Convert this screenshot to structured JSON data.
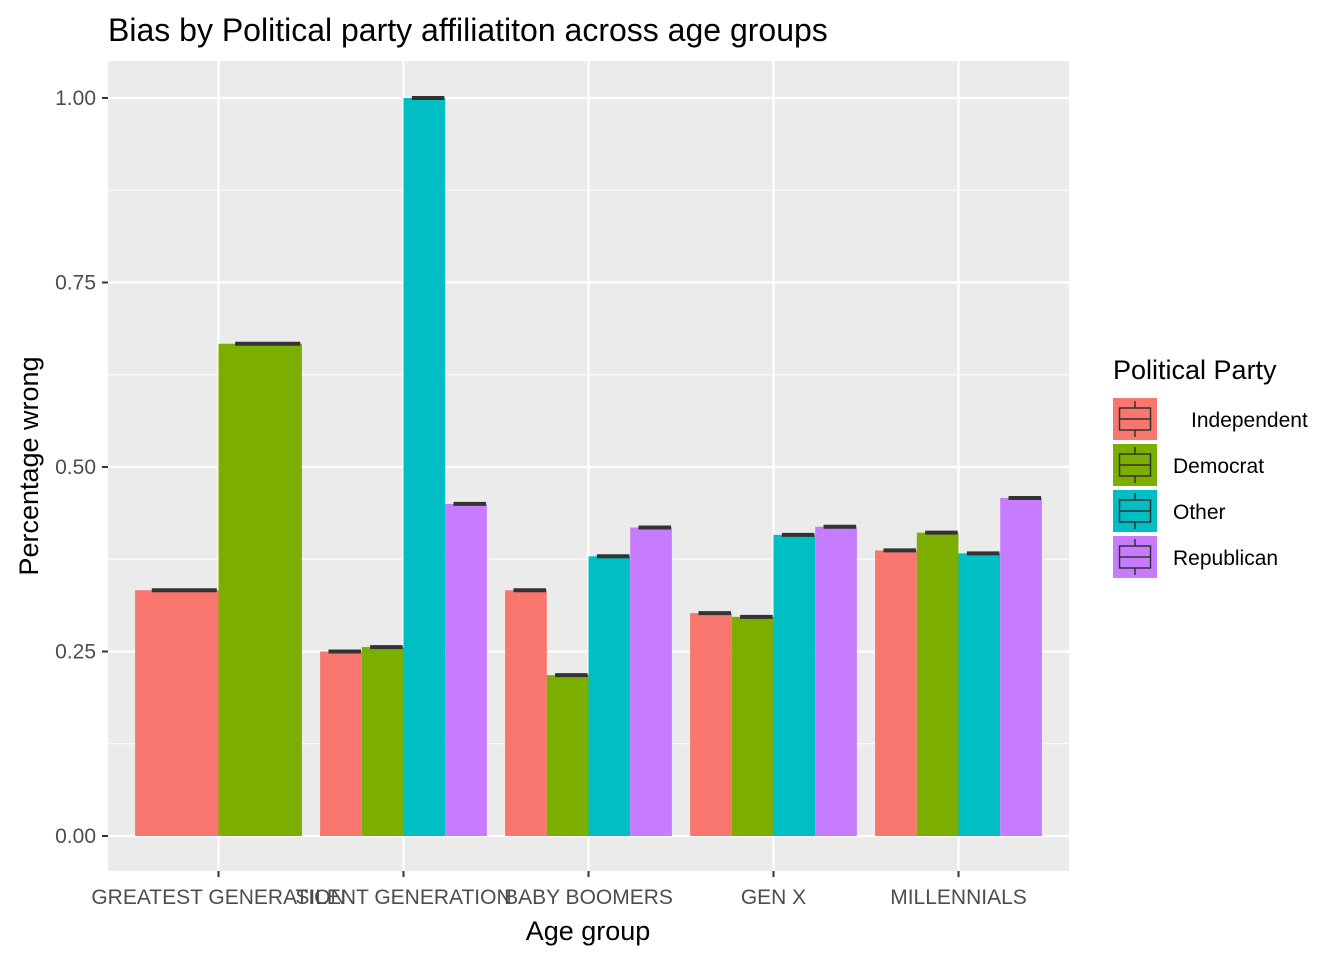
{
  "chart_data": {
    "type": "bar",
    "title": "Bias by Political party affiliatiton across age groups",
    "xlabel": "Age group",
    "ylabel": "Percentage wrong",
    "ylim": [
      -0.04,
      1.05
    ],
    "yticks": [
      0.0,
      0.25,
      0.5,
      0.75,
      1.0
    ],
    "ytick_labels": [
      "0.00",
      "0.25",
      "0.50",
      "0.75",
      "1.00"
    ],
    "categories": [
      "GREATEST GENERATION",
      "SILENT GENERATION",
      "BABY BOOMERS",
      "GEN X",
      "MILLENNIALS"
    ],
    "series": [
      {
        "name": "Independent",
        "color": "#F8766D",
        "values": [
          0.333,
          0.25,
          0.333,
          0.302,
          0.387
        ]
      },
      {
        "name": "Democrat",
        "color": "#7CAE00",
        "values": [
          0.667,
          0.256,
          0.218,
          0.297,
          0.411
        ]
      },
      {
        "name": "Other",
        "color": "#00BFC4",
        "values": [
          null,
          1.0,
          0.379,
          0.408,
          0.383
        ]
      },
      {
        "name": "Republican",
        "color": "#C77CFF",
        "values": [
          null,
          0.45,
          0.418,
          0.419,
          0.458
        ]
      }
    ],
    "legend": {
      "title": "Political Party",
      "position": "right"
    },
    "grid": true,
    "panel_background": "#EBEBEB",
    "error_bar_color": "#333333"
  }
}
